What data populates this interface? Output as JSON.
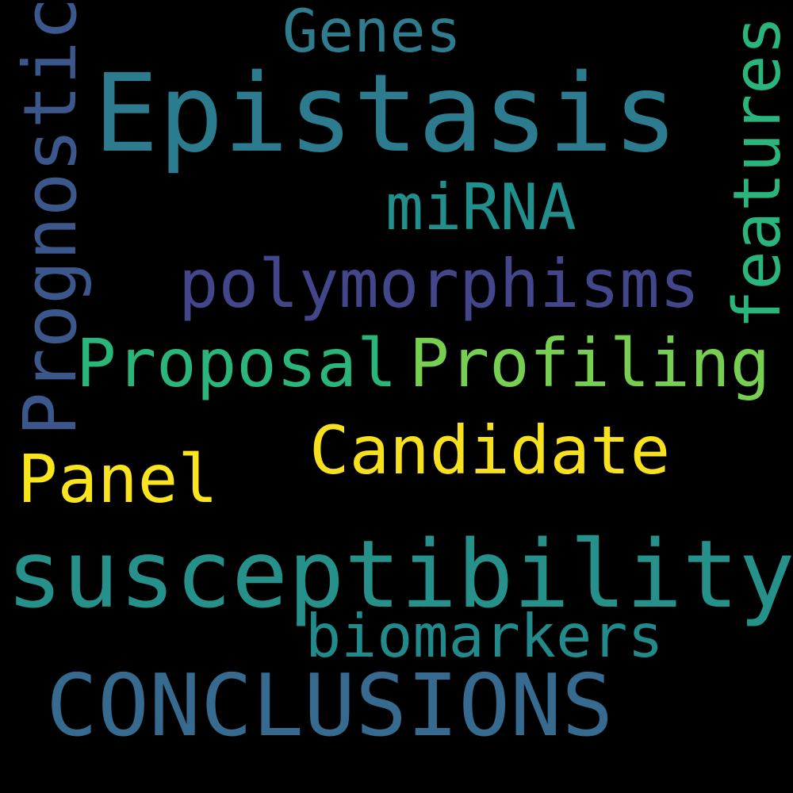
{
  "colors": {
    "background": "#000000",
    "epistasis": "#2c7b8e",
    "susceptibility": "#26918a",
    "conclusions": "#366a8e",
    "proposal": "#2ab57b",
    "profiling": "#76cf50",
    "polymorphisms": "#43468a",
    "candidate": "#f7e11f",
    "panel": "#f9e41e",
    "mirna": "#21908c",
    "biomarkers": "#238a8c",
    "genes": "#2e7c8e",
    "prognostic": "#3c578c",
    "features": "#2ab57c"
  },
  "words": {
    "epistasis": "Epistasis",
    "susceptibility": "susceptibility",
    "conclusions": "CONCLUSIONS",
    "proposal": "Proposal",
    "profiling": "Profiling",
    "polymorphisms": "polymorphisms",
    "candidate": "Candidate",
    "panel": "Panel",
    "mirna": "miRNA",
    "biomarkers": "biomarkers",
    "genes": "Genes",
    "prognostic": "Prognostic",
    "features": "features"
  }
}
